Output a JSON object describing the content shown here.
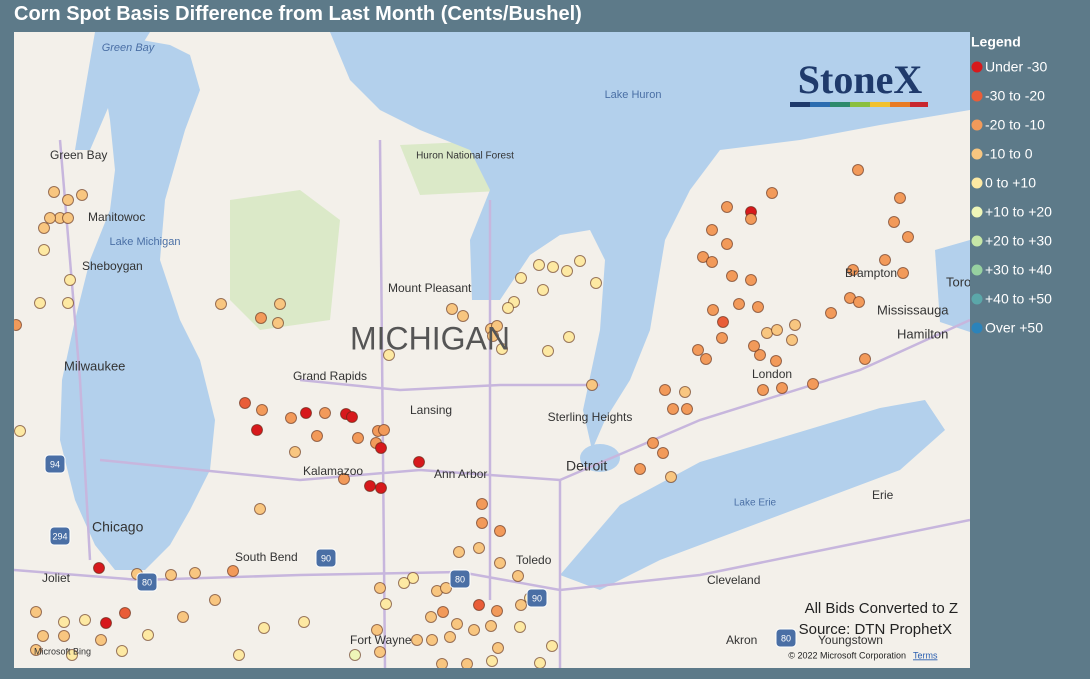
{
  "header": {
    "title": "Corn Spot Basis Difference from Last Month (Cents/Bushel)"
  },
  "legend": {
    "title": "Legend",
    "items": [
      {
        "label": "Under -30",
        "color": "#d7191c"
      },
      {
        "label": "-30 to -20",
        "color": "#e95d38"
      },
      {
        "label": "-20 to -10",
        "color": "#f29a5a"
      },
      {
        "label": "-10 to 0",
        "color": "#f8c680"
      },
      {
        "label": "0 to +10",
        "color": "#fde9a3"
      },
      {
        "label": "+10 to +20",
        "color": "#eef6b8"
      },
      {
        "label": "+20 to +30",
        "color": "#c6e6a7"
      },
      {
        "label": "+30 to +40",
        "color": "#97d1a0"
      },
      {
        "label": "+40 to +50",
        "color": "#5ba7a9"
      },
      {
        "label": "Over +50",
        "color": "#2b83ba"
      }
    ]
  },
  "map": {
    "labels": [
      "Green Bay",
      "Green Bay",
      "Manitowoc",
      "Lake Michigan",
      "Sheboygan",
      "Milwaukee",
      "Chicago",
      "Joliet",
      "Lake Huron",
      "Huron National Forest",
      "Mount Pleasant",
      "MICHIGAN",
      "Grand Rapids",
      "Lansing",
      "Kalamazoo",
      "Ann Arbor",
      "Sterling Heights",
      "Detroit",
      "South Bend",
      "Toledo",
      "Fort Wayne",
      "Cleveland",
      "Akron",
      "Youngstown",
      "Lake Erie",
      "Erie",
      "London",
      "Brampton",
      "Mississauga",
      "Hamilton",
      "Toro"
    ],
    "shields": [
      "94",
      "294",
      "80",
      "90",
      "80",
      "90",
      "80"
    ]
  },
  "logo": "StoneX",
  "notes": [
    "All Bids Converted to Z",
    "Source: DTN ProphetX"
  ],
  "attribution": {
    "provider": "Microsoft Bing",
    "copyright": "© 2022 Microsoft Corporation",
    "terms": "Terms"
  }
}
